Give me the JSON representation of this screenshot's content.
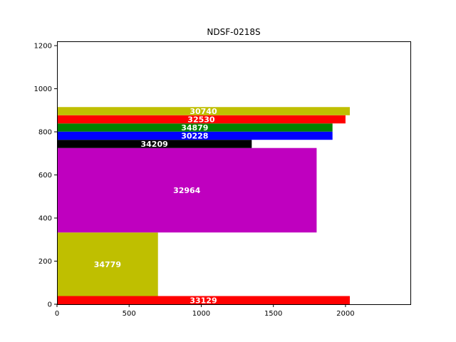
{
  "chart_data": {
    "type": "bar",
    "orientation": "horizontal",
    "title": "NDSF-0218S",
    "xlabel": "",
    "ylabel": "",
    "xlim": [
      0,
      2450
    ],
    "ylim": [
      0,
      1220
    ],
    "xticks": [
      0,
      500,
      1000,
      1500,
      2000
    ],
    "yticks": [
      0,
      200,
      400,
      600,
      800,
      1000,
      1200
    ],
    "grid": false,
    "bars": [
      {
        "label": "33129",
        "x0": 0,
        "x1": 2030,
        "y0": 0,
        "y1": 38,
        "color": "#ff0000"
      },
      {
        "label": "34779",
        "x0": 0,
        "x1": 700,
        "y0": 38,
        "y1": 333,
        "color": "#bfbf00"
      },
      {
        "label": "32964",
        "x0": 0,
        "x1": 1800,
        "y0": 333,
        "y1": 725,
        "color": "#bf00bf"
      },
      {
        "label": "34209",
        "x0": 0,
        "x1": 1350,
        "y0": 725,
        "y1": 763,
        "color": "#000000"
      },
      {
        "label": "30228",
        "x0": 0,
        "x1": 1910,
        "y0": 763,
        "y1": 801,
        "color": "#0000ff"
      },
      {
        "label": "34879",
        "x0": 0,
        "x1": 1910,
        "y0": 801,
        "y1": 839,
        "color": "#008000"
      },
      {
        "label": "32530",
        "x0": 0,
        "x1": 2000,
        "y0": 839,
        "y1": 877,
        "color": "#ff0000"
      },
      {
        "label": "30740",
        "x0": 0,
        "x1": 2030,
        "y0": 877,
        "y1": 915,
        "color": "#bfbf00"
      }
    ]
  }
}
